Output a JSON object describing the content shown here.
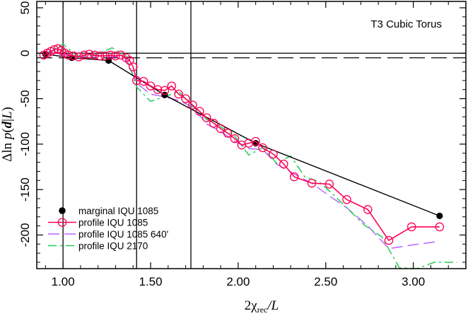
{
  "chart_data": {
    "type": "line",
    "annotation": "T3 Cubic Torus",
    "xlabel": {
      "main": "2χ",
      "sub": "rec",
      "tail": "/L"
    },
    "ylabel": {
      "pre": "Δln ",
      "func": "p",
      "open": "(",
      "arg": "d",
      "mid": "|",
      "arg2": "L",
      "close": ")"
    },
    "xlim": [
      0.85,
      3.3
    ],
    "ylim": [
      -237,
      57
    ],
    "xticks": [
      1.0,
      1.5,
      2.0,
      2.5,
      3.0
    ],
    "xtick_labels": [
      "1.00",
      "1.50",
      "2.00",
      "2.50",
      "3.00"
    ],
    "yticks": [
      50,
      0,
      -50,
      -100,
      -150,
      -200
    ],
    "ytick_labels": [
      "50",
      "0",
      "-50",
      "-100",
      "-150",
      "-200"
    ],
    "reference_lines": {
      "horizontal_solid": 0,
      "horizontal_dashed": -5,
      "vertical": [
        1.0,
        1.42,
        1.73
      ]
    },
    "legend_position": "bottom-left",
    "grid": false,
    "series": [
      {
        "name": "marginal IQU 1085",
        "style": "solid-filled-circle",
        "color": "#000000",
        "x": [
          0.9,
          1.05,
          1.26,
          1.58,
          2.1,
          3.15
        ],
        "y": [
          -1,
          -5,
          -8,
          -46,
          -99,
          -179
        ]
      },
      {
        "name": "profile IQU 1085",
        "style": "solid-open-circle",
        "color": "#ff0055",
        "x": [
          0.89,
          0.91,
          0.93,
          0.95,
          0.97,
          0.99,
          1.01,
          1.03,
          1.06,
          1.09,
          1.12,
          1.15,
          1.18,
          1.21,
          1.24,
          1.27,
          1.3,
          1.33,
          1.36,
          1.38,
          1.4,
          1.42,
          1.46,
          1.5,
          1.54,
          1.58,
          1.62,
          1.66,
          1.7,
          1.74,
          1.78,
          1.82,
          1.86,
          1.9,
          1.94,
          1.98,
          2.02,
          2.06,
          2.1,
          2.14,
          2.2,
          2.26,
          2.32,
          2.42,
          2.52,
          2.62,
          2.74,
          2.86,
          2.99,
          3.15
        ],
        "y": [
          -2,
          0,
          2,
          4,
          5,
          3,
          0,
          -2,
          -3,
          -4,
          -2,
          -1,
          -2,
          -3,
          -3,
          -2,
          -3,
          -2,
          -5,
          -8,
          -15,
          -30,
          -31,
          -36,
          -40,
          -41,
          -36,
          -45,
          -50,
          -57,
          -64,
          -71,
          -77,
          -83,
          -88,
          -94,
          -101,
          -99,
          -97,
          -104,
          -111,
          -122,
          -136,
          -143,
          -144,
          -161,
          -172,
          -206,
          -191,
          -191
        ]
      },
      {
        "name": "profile IQU 1085 640'",
        "style": "long-dash",
        "color": "#b865ff",
        "x": [
          0.89,
          0.95,
          1.0,
          1.1,
          1.2,
          1.3,
          1.36,
          1.42,
          1.5,
          1.58,
          1.66,
          1.74,
          1.82,
          1.9,
          1.98,
          2.06,
          2.14,
          2.22,
          2.32,
          2.42,
          2.52,
          2.62,
          2.74,
          2.86,
          2.99,
          3.15
        ],
        "y": [
          -2,
          3,
          -2,
          -4,
          -3,
          -4,
          -6,
          -33,
          -45,
          -48,
          -52,
          -59,
          -78,
          -86,
          -97,
          -105,
          -106,
          -122,
          -133,
          -143,
          -157,
          -170,
          -190,
          -215,
          -211,
          -207
        ]
      },
      {
        "name": "profile IQU 2170",
        "style": "dash-dot",
        "color": "#22cc55",
        "x": [
          0.89,
          0.95,
          1.0,
          1.08,
          1.18,
          1.28,
          1.36,
          1.42,
          1.5,
          1.58,
          1.66,
          1.74,
          1.82,
          1.9,
          1.98,
          2.06,
          2.14,
          2.22,
          2.3,
          2.38,
          2.46,
          2.54,
          2.62,
          2.72,
          2.82,
          2.92,
          3.02,
          3.12,
          3.25
        ],
        "y": [
          -2,
          5,
          10,
          -3,
          -2,
          6,
          -3,
          -37,
          -53,
          -48,
          -42,
          -58,
          -73,
          -81,
          -91,
          -112,
          -104,
          -121,
          -113,
          -136,
          -141,
          -155,
          -170,
          -189,
          -202,
          -236,
          -237,
          -230,
          -230
        ]
      }
    ]
  }
}
